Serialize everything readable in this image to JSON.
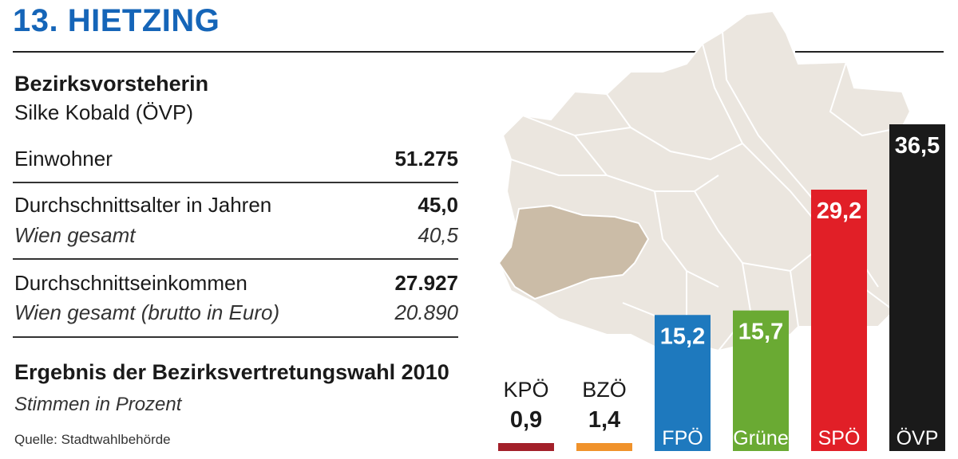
{
  "header": {
    "title": "13. HIETZING"
  },
  "info": {
    "head_title": "Bezirksvorsteherin",
    "head_name": "Silke Kobald (ÖVP)",
    "rows": [
      {
        "label": "Einwohner",
        "value": "51.275"
      },
      {
        "label": "Durchschnittsalter in Jahren",
        "value": "45,0",
        "sub_label": "Wien gesamt",
        "sub_value": "40,5"
      },
      {
        "label": "Durchschnittseinkommen",
        "value": "27.927",
        "sub_label": "Wien gesamt (brutto in Euro)",
        "sub_value": "20.890"
      }
    ],
    "election_title": "Ergebnis der Bezirksvertretungswahl 2010",
    "election_subtitle": "Stimmen in Prozent",
    "source": "Quelle: Stadtwahlbehörde"
  },
  "colors": {
    "title": "#1565b8",
    "map_fill": "#ebe6df",
    "district_highlight": "#cbbca7",
    "KPÖ": "#a3202a",
    "BZÖ": "#f0922b",
    "FPÖ": "#1e79be",
    "Grüne": "#6aaa33",
    "SPÖ": "#e11f27",
    "ÖVP": "#1a1a1a"
  },
  "chart_data": {
    "type": "bar",
    "categories": [
      "KPÖ",
      "BZÖ",
      "FPÖ",
      "Grüne",
      "SPÖ",
      "ÖVP"
    ],
    "values": [
      0.9,
      1.4,
      15.2,
      15.7,
      29.2,
      36.5
    ],
    "value_labels": [
      "0,9",
      "1,4",
      "15,2",
      "15,7",
      "29,2",
      "36,5"
    ],
    "title": "Ergebnis der Bezirksvertretungswahl 2010",
    "subtitle": "Stimmen in Prozent",
    "ylim": [
      0,
      36.5
    ],
    "grid": false,
    "legend": "none"
  }
}
